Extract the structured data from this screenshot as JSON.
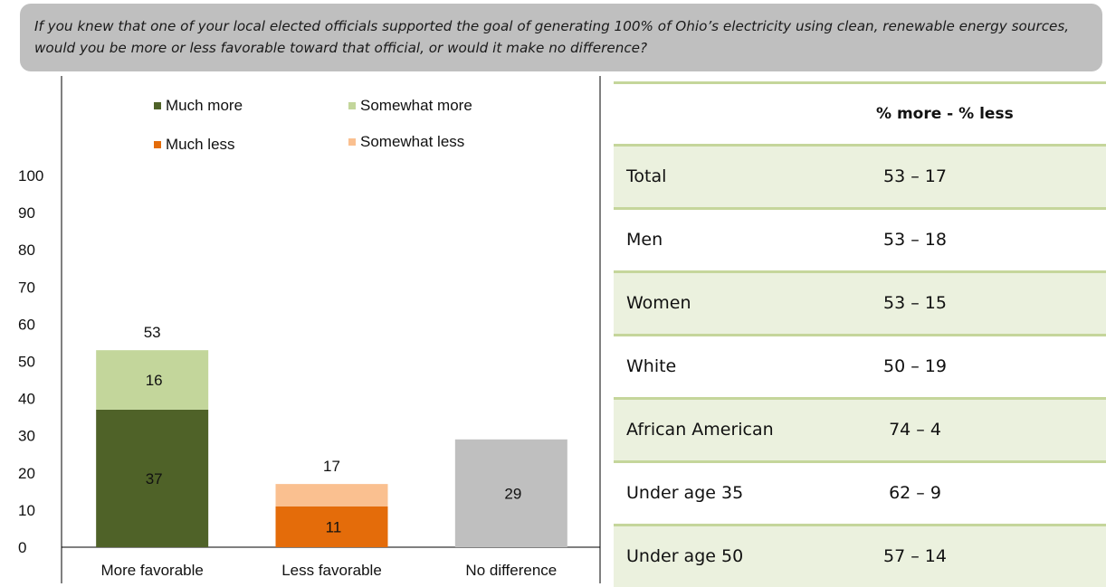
{
  "question": "If you knew that one of your local elected officials supported the goal of generating 100% of Ohio’s electricity  using clean, renewable energy sources, would you be more or less favorable toward that official, or would it make no difference?",
  "chart_data": {
    "type": "bar",
    "stacked": true,
    "categories": [
      "More favorable",
      "Less favorable",
      "No difference"
    ],
    "ylim": [
      0,
      100
    ],
    "yticks": [
      "0",
      "10",
      "20",
      "30",
      "40",
      "50",
      "60",
      "70",
      "80",
      "90",
      "100"
    ],
    "legend_position": "top",
    "series": [
      {
        "name": "Much more",
        "color": "#4f6228",
        "values": [
          37,
          null,
          null
        ],
        "labels": [
          "37",
          "",
          ""
        ]
      },
      {
        "name": "Somewhat more",
        "color": "#c3d69b",
        "values": [
          16,
          null,
          null
        ],
        "labels": [
          "16",
          "",
          ""
        ]
      },
      {
        "name": "Much less",
        "color": "#e46c0a",
        "values": [
          null,
          11,
          null
        ],
        "labels": [
          "",
          "11",
          ""
        ]
      },
      {
        "name": "Somewhat less",
        "color": "#fac090",
        "values": [
          null,
          6,
          null
        ],
        "labels": [
          "",
          "",
          ""
        ]
      },
      {
        "name": "",
        "color": "#bfbfbf",
        "values": [
          null,
          null,
          29
        ],
        "labels": [
          "",
          "",
          "29"
        ]
      }
    ],
    "totals": [
      "53",
      "17",
      ""
    ],
    "legend": [
      "Much more",
      "Somewhat more",
      "Much less",
      "Somewhat less"
    ]
  },
  "table": {
    "header": "% more - % less",
    "rows": [
      {
        "label": "Total",
        "value": "53 – 17"
      },
      {
        "label": "Men",
        "value": "53 – 18"
      },
      {
        "label": "Women",
        "value": "53 – 15"
      },
      {
        "label": "White",
        "value": "50 – 19"
      },
      {
        "label": "African American",
        "value": "74 – 4"
      },
      {
        "label": "Under age 35",
        "value": "62 – 9"
      },
      {
        "label": "Under age 50",
        "value": "57 – 14"
      }
    ]
  }
}
